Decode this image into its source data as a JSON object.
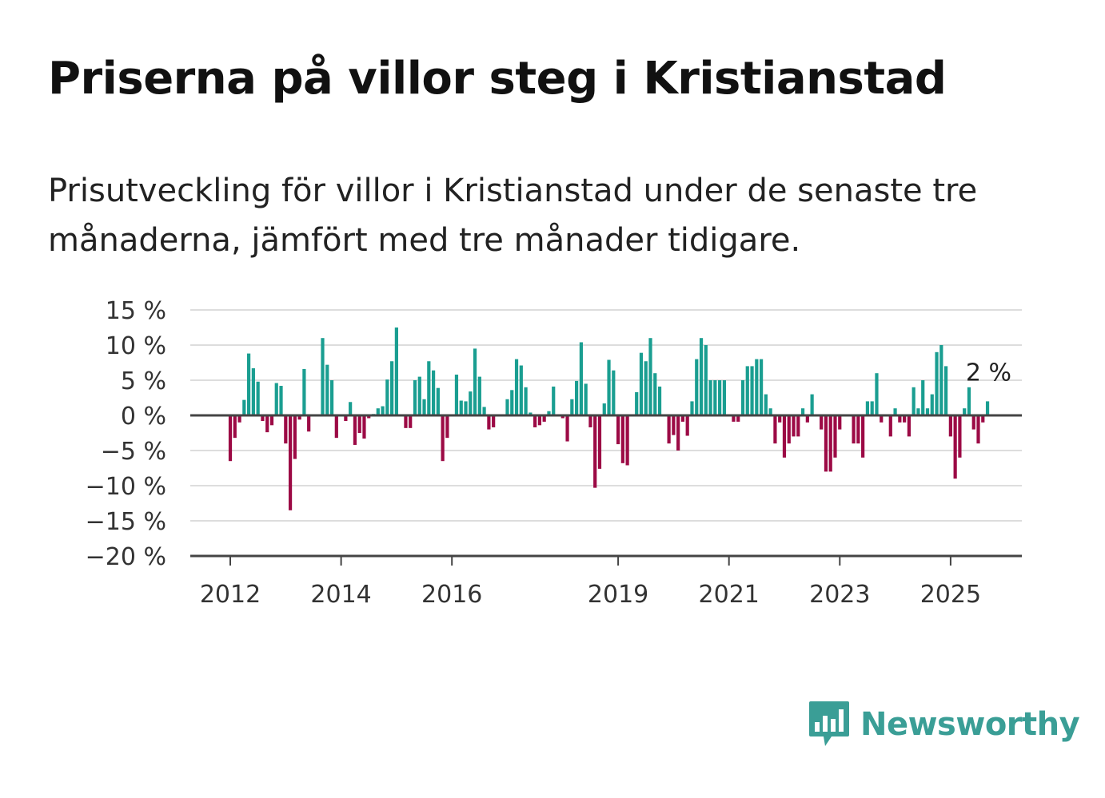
{
  "title": "Priserna på villor steg i Kristianstad",
  "subtitle": "Prisutveckling för villor i Kristianstad under de senaste tre månaderna, jämfört med tre månader tidigare.",
  "brand": {
    "name": "Newsworthy",
    "color": "#3a9e96"
  },
  "colors": {
    "positive": "#1a9e91",
    "negative": "#9c0a45",
    "grid": "#dddddd",
    "axis": "#444444"
  },
  "chart_data": {
    "type": "bar",
    "title": "",
    "xlabel": "",
    "ylabel": "",
    "ylim": [
      -20,
      15
    ],
    "y_ticks": [
      15,
      10,
      5,
      0,
      -5,
      -10,
      -15,
      -20
    ],
    "y_tick_labels": [
      "15 %",
      "10 %",
      "5 %",
      "0 %",
      "−5 %",
      "−10 %",
      "−15 %",
      "−20 %"
    ],
    "x_tick_labels": [
      "2012",
      "2014",
      "2016",
      "2019",
      "2021",
      "2023",
      "2025"
    ],
    "x_tick_positions": [
      2012,
      2014,
      2016,
      2019,
      2021,
      2023,
      2025
    ],
    "grid": true,
    "x_start": 2012,
    "step_years": 0.08333,
    "values": [
      -6.5,
      -3.2,
      -1.0,
      2.2,
      8.8,
      6.7,
      4.8,
      -0.8,
      -2.4,
      -1.4,
      4.6,
      4.2,
      -4.0,
      -13.5,
      -6.2,
      -0.6,
      6.6,
      -2.3,
      0,
      0,
      11.0,
      7.2,
      5.0,
      -3.2,
      0,
      -0.8,
      1.9,
      -4.2,
      -2.5,
      -3.3,
      -0.4,
      0.2,
      1.0,
      1.3,
      5.1,
      7.7,
      12.5,
      0,
      -1.8,
      -1.8,
      5.0,
      5.5,
      2.3,
      7.7,
      6.4,
      3.9,
      -6.5,
      -3.2,
      0,
      5.8,
      2.1,
      2.0,
      3.4,
      9.5,
      5.5,
      1.2,
      -2.0,
      -1.7,
      0,
      0,
      2.3,
      3.6,
      8.0,
      7.1,
      4.0,
      0.4,
      -1.7,
      -1.4,
      -0.9,
      0.6,
      4.1,
      0,
      -0.4,
      -3.7,
      2.3,
      4.9,
      10.4,
      4.5,
      -1.7,
      -10.3,
      -7.6,
      1.7,
      7.9,
      6.4,
      -4.1,
      -6.8,
      -7.1,
      0,
      3.3,
      8.9,
      7.7,
      11.0,
      6.0,
      4.1,
      0,
      -4.0,
      -2.8,
      -5.0,
      -0.9,
      -2.9,
      2.0,
      8.0,
      11.0,
      10.0,
      5.0,
      5.0,
      5.0,
      5.0,
      0,
      -0.9,
      -0.9,
      5.0,
      7.0,
      7.0,
      8.0,
      8.0,
      3.0,
      1.0,
      -4.0,
      -1.0,
      -6.0,
      -4.0,
      -3.0,
      -3.0,
      1.0,
      -1.0,
      3.0,
      0,
      -2.0,
      -8.0,
      -8.0,
      -6.0,
      -2.0,
      0,
      0,
      -4.0,
      -4.0,
      -6.0,
      2.0,
      2.0,
      6.0,
      -1.0,
      0,
      -3.0,
      1.0,
      -1.0,
      -1.0,
      -3.0,
      4.0,
      1.0,
      5.0,
      1.0,
      3.0,
      9.0,
      10.0,
      7.0,
      -3.0,
      -9.0,
      -6.0,
      1.0,
      4.0,
      -2.0,
      -4.0,
      -1.0,
      2.0
    ],
    "annotation": {
      "text": "2 %"
    }
  }
}
